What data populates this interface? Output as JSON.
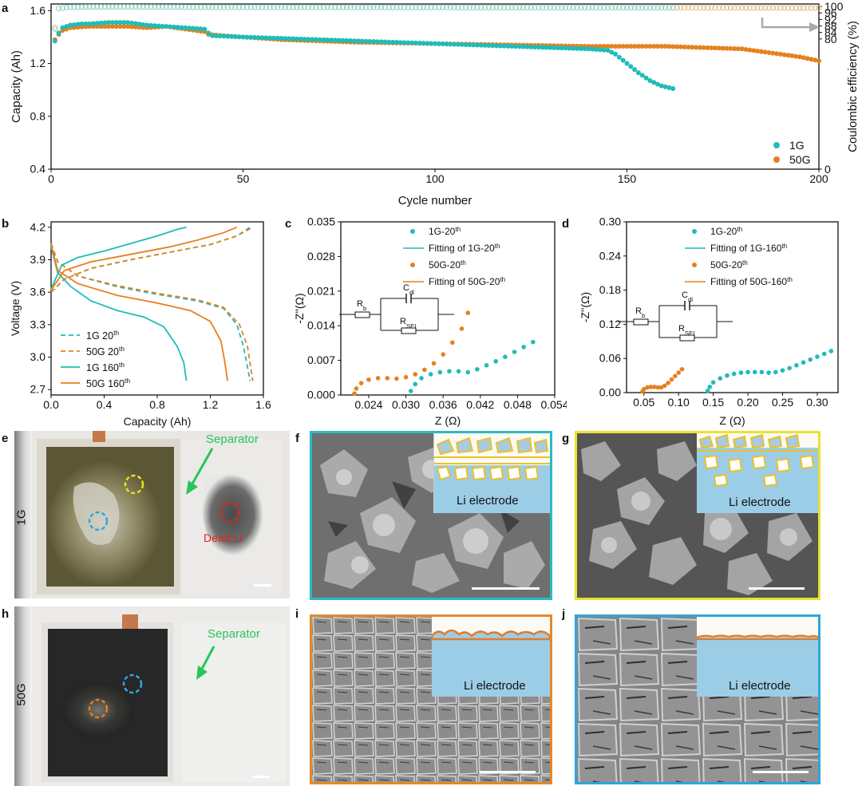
{
  "colors": {
    "g1": "#1fbcb8",
    "g50": "#e6801f",
    "ce1": "#8fd8d5",
    "ce50": "#dcc187",
    "arrow": "#a9a9a9",
    "separator_green": "#27c55a",
    "dead_red": "#e02424",
    "circle_yellow": "#e8e21a",
    "circle_blue": "#29a9e1",
    "frame_f": "#2bbbc0",
    "frame_g": "#e9e230",
    "frame_i": "#e4882d",
    "frame_j": "#2ea6d8",
    "electrode_fill": "#9ccde6"
  },
  "labels": {
    "a": "a",
    "b": "b",
    "c": "c",
    "d": "d",
    "e": "e",
    "f": "f",
    "g": "g",
    "h": "h",
    "i": "i",
    "j": "j"
  },
  "chart_data": [
    {
      "id": "a",
      "type": "scatter",
      "xlabel": "Cycle number",
      "ylabel": "Capacity (Ah)",
      "y2label": "Coulombic efficiency (%)",
      "xlim": [
        0,
        200
      ],
      "ylim": [
        0.4,
        1.65
      ],
      "y2lim": [
        0,
        101.5
      ],
      "xticks": [
        "0",
        "50",
        "100",
        "150",
        "200"
      ],
      "yticks": [
        "0.4",
        "0.8",
        "1.2",
        "1.6"
      ],
      "y2ticks": [
        "0",
        "80",
        "84",
        "88",
        "92",
        "96",
        "100"
      ],
      "legend_position": "bottom-right",
      "series": [
        {
          "name": "1G",
          "role": "capacity",
          "x": [
            1,
            2,
            3,
            5,
            8,
            10,
            15,
            20,
            25,
            30,
            35,
            40,
            41,
            42,
            50,
            60,
            70,
            80,
            90,
            100,
            110,
            120,
            130,
            140,
            145,
            147,
            150,
            153,
            156,
            159,
            162
          ],
          "y": [
            1.37,
            1.43,
            1.47,
            1.49,
            1.5,
            1.5,
            1.51,
            1.51,
            1.49,
            1.48,
            1.47,
            1.46,
            1.43,
            1.41,
            1.4,
            1.39,
            1.38,
            1.37,
            1.36,
            1.35,
            1.34,
            1.33,
            1.32,
            1.31,
            1.3,
            1.27,
            1.2,
            1.13,
            1.07,
            1.03,
            1.01
          ]
        },
        {
          "name": "50G",
          "role": "capacity",
          "x": [
            1,
            2,
            3,
            5,
            10,
            20,
            25,
            30,
            35,
            40,
            41,
            45,
            50,
            60,
            80,
            100,
            120,
            140,
            160,
            170,
            180,
            185,
            190,
            195,
            200
          ],
          "y": [
            1.38,
            1.42,
            1.45,
            1.47,
            1.48,
            1.48,
            1.47,
            1.48,
            1.46,
            1.44,
            1.42,
            1.41,
            1.4,
            1.38,
            1.36,
            1.35,
            1.34,
            1.33,
            1.33,
            1.32,
            1.31,
            1.29,
            1.27,
            1.25,
            1.22
          ]
        },
        {
          "name": "1G",
          "role": "coulombic_efficiency",
          "x": [
            1,
            2,
            5,
            10,
            20,
            40,
            60,
            80,
            100,
            120,
            140,
            160,
            162
          ],
          "y": [
            86,
            98.8,
            99.6,
            99.8,
            99.8,
            99.5,
            99.5,
            99.4,
            99.4,
            99.3,
            99.3,
            99.2,
            99.2
          ]
        },
        {
          "name": "50G",
          "role": "coulombic_efficiency",
          "x": [
            1,
            2,
            5,
            20,
            40,
            60,
            100,
            140,
            160,
            180,
            190,
            200
          ],
          "y": [
            87,
            98.8,
            99.6,
            99.7,
            99.6,
            99.5,
            99.4,
            99.3,
            99.3,
            99.2,
            99.1,
            99.0
          ]
        }
      ]
    },
    {
      "id": "b",
      "type": "line",
      "xlabel": "Capacity (Ah)",
      "ylabel": "Voltage (V)",
      "xlim": [
        0,
        1.6
      ],
      "ylim": [
        2.65,
        4.25
      ],
      "xticks": [
        "0.0",
        "0.4",
        "0.8",
        "1.2",
        "1.6"
      ],
      "yticks": [
        "2.7",
        "3.0",
        "3.3",
        "3.6",
        "3.9",
        "4.2"
      ],
      "legend_position": "bottom-left",
      "series": [
        {
          "name": "1G 20",
          "name_sup": "th",
          "dash": true,
          "color": "g1",
          "charge": {
            "x": [
              0,
              0.1,
              0.3,
              0.6,
              0.9,
              1.2,
              1.4,
              1.5
            ],
            "y": [
              3.6,
              3.72,
              3.82,
              3.9,
              3.97,
              4.04,
              4.12,
              4.2
            ]
          },
          "discharge": {
            "x": [
              0,
              0.05,
              0.2,
              0.5,
              0.8,
              1.1,
              1.3,
              1.4,
              1.45,
              1.5
            ],
            "y": [
              4.05,
              3.88,
              3.75,
              3.65,
              3.58,
              3.52,
              3.45,
              3.3,
              3.1,
              2.78
            ]
          }
        },
        {
          "name": "50G 20",
          "name_sup": "th",
          "dash": true,
          "color": "g50",
          "charge": {
            "x": [
              0,
              0.1,
              0.3,
              0.6,
              0.9,
              1.2,
              1.4,
              1.52
            ],
            "y": [
              3.6,
              3.72,
              3.82,
              3.9,
              3.97,
              4.04,
              4.12,
              4.2
            ]
          },
          "discharge": {
            "x": [
              0,
              0.05,
              0.2,
              0.5,
              0.8,
              1.1,
              1.3,
              1.42,
              1.48,
              1.52
            ],
            "y": [
              4.05,
              3.88,
              3.75,
              3.66,
              3.59,
              3.53,
              3.46,
              3.3,
              3.1,
              2.78
            ]
          }
        },
        {
          "name": "1G 160",
          "name_sup": "th",
          "dash": false,
          "color": "g1",
          "charge": {
            "x": [
              0,
              0.08,
              0.2,
              0.4,
              0.6,
              0.8,
              0.95,
              1.02
            ],
            "y": [
              3.63,
              3.85,
              3.92,
              3.98,
              4.05,
              4.12,
              4.18,
              4.2
            ]
          },
          "discharge": {
            "x": [
              0,
              0.05,
              0.15,
              0.3,
              0.5,
              0.7,
              0.85,
              0.95,
              1.0,
              1.02
            ],
            "y": [
              4.02,
              3.78,
              3.65,
              3.52,
              3.43,
              3.37,
              3.28,
              3.1,
              2.95,
              2.78
            ]
          }
        },
        {
          "name": "50G 160",
          "name_sup": "th",
          "dash": false,
          "color": "g50",
          "charge": {
            "x": [
              0,
              0.1,
              0.3,
              0.6,
              0.9,
              1.1,
              1.3,
              1.4
            ],
            "y": [
              3.62,
              3.8,
              3.88,
              3.95,
              4.02,
              4.08,
              4.15,
              4.2
            ]
          },
          "discharge": {
            "x": [
              0,
              0.05,
              0.2,
              0.5,
              0.8,
              1.05,
              1.2,
              1.28,
              1.31,
              1.33
            ],
            "y": [
              4.04,
              3.8,
              3.68,
              3.57,
              3.5,
              3.43,
              3.33,
              3.15,
              2.95,
              2.78
            ]
          }
        }
      ]
    },
    {
      "id": "c",
      "type": "scatter",
      "xlabel": "Z (Ω)",
      "ylabel": "-Z''(Ω)",
      "xlim": [
        0.0195,
        0.054
      ],
      "ylim": [
        0,
        0.035
      ],
      "xticks": [
        "0.024",
        "0.030",
        "0.036",
        "0.042",
        "0.048",
        "0.054"
      ],
      "yticks": [
        "0.000",
        "0.007",
        "0.014",
        "0.021",
        "0.028",
        "0.035"
      ],
      "circuit": {
        "rb": "R",
        "rb_sub": "b",
        "cdl": "C",
        "cdl_sub": "dl",
        "rsei": "R",
        "rsei_sub": "SEI"
      },
      "legend": [
        {
          "text": "1G-20",
          "sup": "th",
          "kind": "dot",
          "color": "g1"
        },
        {
          "text": "Fitting of 1G-20",
          "sup": "th",
          "kind": "line",
          "color": "g1"
        },
        {
          "text": "50G-20",
          "sup": "th",
          "kind": "dot",
          "color": "g50"
        },
        {
          "text": "Fitting of 50G-20",
          "sup": "th",
          "kind": "line",
          "color": "g50"
        }
      ],
      "series": [
        {
          "name": "1G-20",
          "color": "g1",
          "x": [
            0.0308,
            0.0315,
            0.0325,
            0.034,
            0.0355,
            0.037,
            0.0385,
            0.04,
            0.0415,
            0.043,
            0.0445,
            0.046,
            0.0475,
            0.049,
            0.0505
          ],
          "y": [
            0.0008,
            0.0022,
            0.0034,
            0.0042,
            0.0046,
            0.0048,
            0.0048,
            0.0046,
            0.0052,
            0.006,
            0.0068,
            0.0077,
            0.0087,
            0.0097,
            0.0107
          ]
        },
        {
          "name": "50G-20",
          "color": "g50",
          "x": [
            0.0217,
            0.022,
            0.0228,
            0.024,
            0.0255,
            0.027,
            0.0285,
            0.03,
            0.0315,
            0.033,
            0.0345,
            0.036,
            0.0375,
            0.039,
            0.04
          ],
          "y": [
            0.0003,
            0.0013,
            0.0024,
            0.0031,
            0.0034,
            0.0034,
            0.0033,
            0.0036,
            0.0042,
            0.0051,
            0.0064,
            0.0082,
            0.0106,
            0.0134,
            0.0166
          ]
        }
      ]
    },
    {
      "id": "d",
      "type": "scatter",
      "xlabel": "Z (Ω)",
      "ylabel": "-Z''(Ω)",
      "xlim": [
        0.025,
        0.33
      ],
      "ylim": [
        0,
        0.3
      ],
      "xticks": [
        "0.05",
        "0.10",
        "0.15",
        "0.20",
        "0.25",
        "0.30"
      ],
      "yticks": [
        "0.00",
        "0.06",
        "0.12",
        "0.18",
        "0.24",
        "0.30"
      ],
      "circuit": {
        "rb": "R",
        "rb_sub": "b",
        "cdl": "C",
        "cdl_sub": "dl",
        "rsei": "R",
        "rsei_sub": "SEI"
      },
      "legend": [
        {
          "text": "1G-20",
          "sup": "th",
          "kind": "dot",
          "color": "g1"
        },
        {
          "text": "Fitting of 1G-160",
          "sup": "th",
          "kind": "line",
          "color": "g1"
        },
        {
          "text": "50G-20",
          "sup": "th",
          "kind": "dot",
          "color": "g50"
        },
        {
          "text": "Fitting of 50G-160",
          "sup": "th",
          "kind": "line",
          "color": "g50"
        }
      ],
      "series": [
        {
          "name": "1G",
          "color": "g1",
          "x": [
            0.142,
            0.145,
            0.15,
            0.16,
            0.17,
            0.18,
            0.19,
            0.2,
            0.21,
            0.22,
            0.23,
            0.24,
            0.25,
            0.26,
            0.27,
            0.28,
            0.29,
            0.3,
            0.31,
            0.32
          ],
          "y": [
            0.003,
            0.01,
            0.018,
            0.025,
            0.03,
            0.033,
            0.035,
            0.036,
            0.036,
            0.036,
            0.035,
            0.036,
            0.039,
            0.043,
            0.048,
            0.053,
            0.058,
            0.063,
            0.068,
            0.073
          ]
        },
        {
          "name": "50G",
          "color": "g50",
          "x": [
            0.048,
            0.05,
            0.055,
            0.06,
            0.065,
            0.07,
            0.075,
            0.08,
            0.085,
            0.09,
            0.095,
            0.1,
            0.105
          ],
          "y": [
            0.002,
            0.006,
            0.009,
            0.01,
            0.01,
            0.009,
            0.009,
            0.012,
            0.017,
            0.023,
            0.029,
            0.035,
            0.041
          ]
        }
      ]
    }
  ],
  "photos": {
    "e": {
      "side_label": "1G",
      "separator": "Separator",
      "dead": "Dead Li"
    },
    "h": {
      "side_label": "50G",
      "separator": "Separator"
    }
  },
  "sem": {
    "f": {
      "text": "Li electrode"
    },
    "g": {
      "text": "Li electrode"
    },
    "i": {
      "text": "Li electrode"
    },
    "j": {
      "text": "Li electrode"
    }
  }
}
